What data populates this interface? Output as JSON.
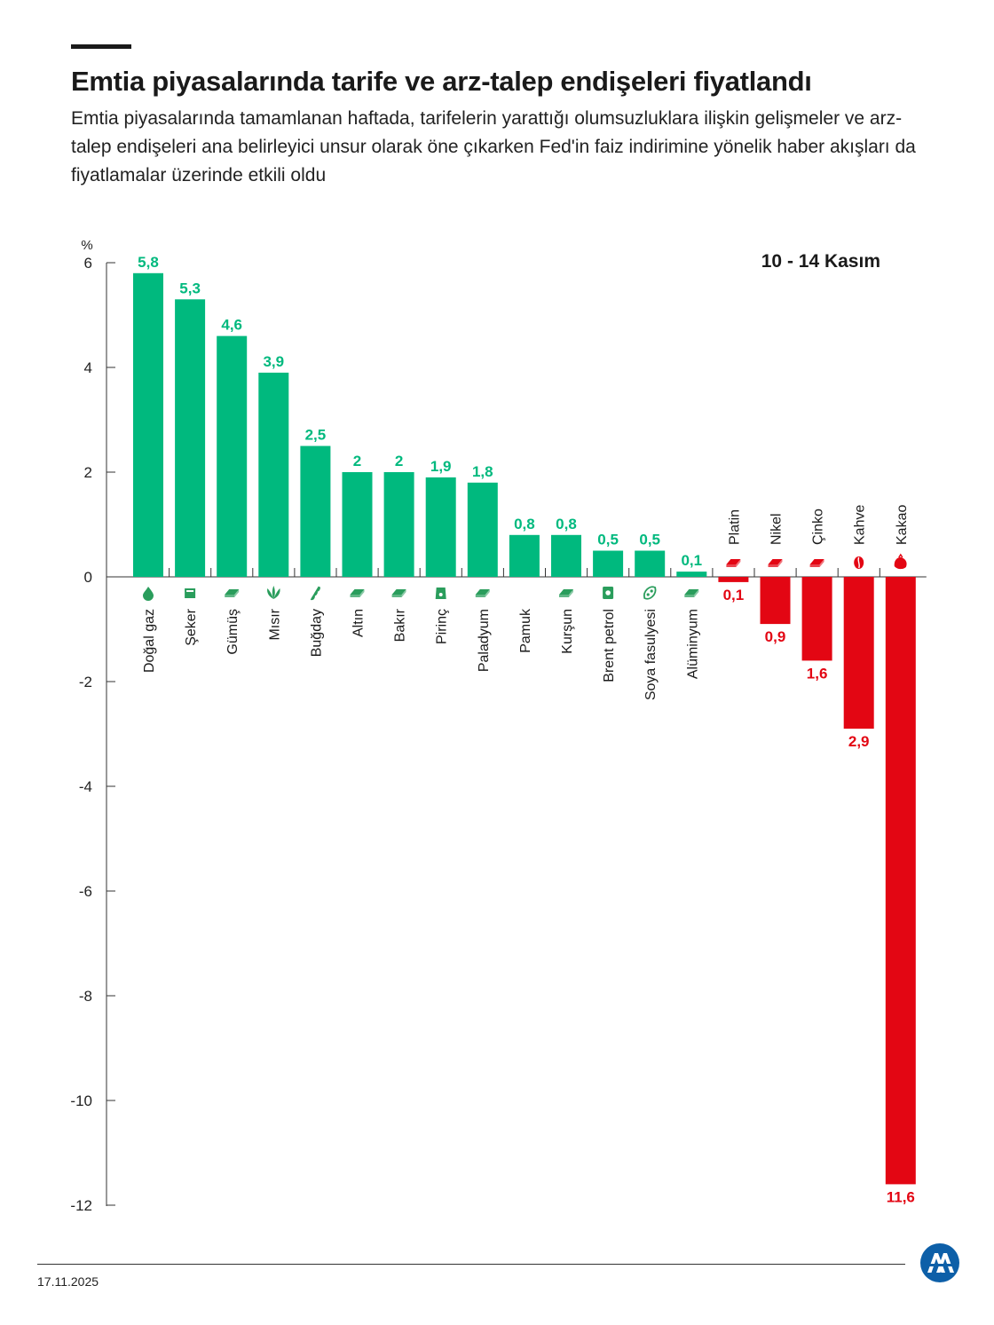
{
  "header": {
    "title": "Emtia piyasalarında tarife ve arz-talep endişeleri fiyatlandı",
    "subtitle": "Emtia piyasalarında tamamlanan haftada, tarifelerin yarattığı olumsuzluklara ilişkin gelişmeler ve arz-talep endişeleri ana belirleyici unsur olarak öne çıkarken Fed'in faiz indirimine yönelik haber akışları da fiyatlamalar üzerinde etkili oldu"
  },
  "footer": {
    "date": "17.11.2025",
    "logo_icon": "aa-logo-icon"
  },
  "chart_data": {
    "type": "bar",
    "title": "Emtia piyasalarında tarife ve arz-talep endişeleri fiyatlandı",
    "period_label": "10 - 14 Kasım",
    "ylabel": "%",
    "ylim": [
      -12,
      6
    ],
    "yticks": [
      6,
      4,
      2,
      0,
      -2,
      -4,
      -6,
      -8,
      -10,
      -12
    ],
    "grid": false,
    "colors": {
      "positive": "#00b97e",
      "negative": "#e30613",
      "icon": "#2a9d5c"
    },
    "categories": [
      "Doğal gaz",
      "Şeker",
      "Gümüş",
      "Mısır",
      "Buğday",
      "Altın",
      "Bakır",
      "Pirinç",
      "Paladyum",
      "Pamuk",
      "Kurşun",
      "Brent petrol",
      "Soya fasulyesi",
      "Alüminyum",
      "Platin",
      "Nikel",
      "Çinko",
      "Kahve",
      "Kakao"
    ],
    "values": [
      5.8,
      5.3,
      4.6,
      3.9,
      2.5,
      2,
      2,
      1.9,
      1.8,
      0.8,
      0.8,
      0.5,
      0.5,
      0.1,
      -0.1,
      -0.9,
      -1.6,
      -2.9,
      -11.6
    ],
    "value_labels": [
      "5,8",
      "5,3",
      "4,6",
      "3,9",
      "2,5",
      "2",
      "2",
      "1,9",
      "1,8",
      "0,8",
      "0,8",
      "0,5",
      "0,5",
      "0,1",
      "0,1",
      "0,9",
      "1,6",
      "2,9",
      "11,6"
    ],
    "icons": [
      "flame-icon",
      "sugar-icon",
      "metal-icon",
      "corn-icon",
      "wheat-icon",
      "metal-icon",
      "metal-icon",
      "rice-icon",
      "metal-icon",
      "none",
      "metal-icon",
      "oil-barrel-icon",
      "soybean-icon",
      "metal-icon",
      "metal-icon",
      "metal-icon",
      "metal-icon",
      "coffee-bean-icon",
      "cocoa-icon"
    ]
  }
}
